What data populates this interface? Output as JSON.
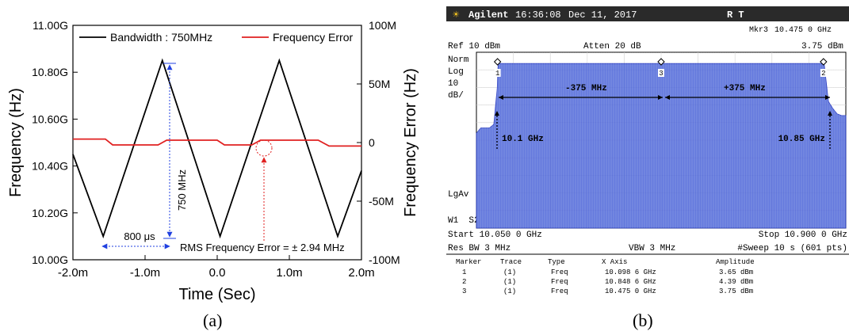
{
  "chart_data": [
    {
      "type": "line",
      "panel_label": "(a)",
      "xlabel": "Time (Sec)",
      "ylabel_left": "Frequency (Hz)",
      "ylabel_right": "Frequency Error (Hz)",
      "xlim": [
        -0.002,
        0.002
      ],
      "ylim_left": [
        10000000000,
        11000000000
      ],
      "ylim_right": [
        -100000000,
        100000000
      ],
      "x_ticks": [
        -0.002,
        -0.001,
        0,
        0.001,
        0.002
      ],
      "x_tick_labels": [
        "-2.0m",
        "-1.0m",
        "0.0",
        "1.0m",
        "2.0m"
      ],
      "y_left_ticks": [
        10000000000,
        10200000000,
        10400000000,
        10600000000,
        10800000000,
        11000000000
      ],
      "y_left_tick_labels": [
        "10.00G",
        "10.20G",
        "10.40G",
        "10.60G",
        "10.80G",
        "11.00G"
      ],
      "y_right_ticks": [
        -100000000,
        -50000000,
        0,
        50000000,
        100000000
      ],
      "y_right_tick_labels": [
        "-100M",
        "-50M",
        "0",
        "50M",
        "100M"
      ],
      "legend": {
        "placement": "top",
        "entries": [
          "Bandwidth : 750MHz",
          "Frequency Error"
        ]
      },
      "series": [
        {
          "name": "Bandwidth : 750MHz",
          "axis": "left",
          "color": "#000000",
          "x": [
            -0.002,
            -0.00158,
            -0.00076,
            4e-05,
            0.00086,
            0.00167,
            0.002
          ],
          "y": [
            10450000000,
            10100000000,
            10850000000,
            10100000000,
            10850000000,
            10100000000,
            10380000000
          ]
        },
        {
          "name": "Frequency Error",
          "axis": "right",
          "color": "#e02020",
          "x": [
            -0.002,
            -0.00155,
            -0.00145,
            -0.00082,
            -0.0007,
            0.0,
            0.0001,
            0.00048,
            0.0006,
            0.0014,
            0.00155,
            0.002
          ],
          "y": [
            3000000,
            3000000,
            -2000000,
            -2000000,
            2000000,
            2000000,
            -2000000,
            -2000000,
            2000000,
            2000000,
            -3000000,
            -3000000
          ]
        }
      ],
      "annotations": {
        "vertical_span": "750 MHz",
        "horizontal_span": "800 μs",
        "rms": "RMS Frequency Error = ± 2.94 MHz"
      }
    },
    {
      "type": "area",
      "panel_label": "(b)",
      "header": {
        "brand": "Agilent",
        "time": "16:36:08",
        "date": "Dec 11, 2017",
        "flags": "R T"
      },
      "marker_readout": {
        "label": "Mkr3",
        "freq": "10.475 0 GHz",
        "amp": "3.75 dBm"
      },
      "ref_level": "Ref 10 dBm",
      "attenuation": "Atten 20 dB",
      "left_labels": [
        "Norm",
        "Log",
        "10",
        "dB/"
      ],
      "lgav": "LgAv",
      "w1s2": "W1  S2",
      "start": "Start 10.050 0 GHz",
      "stop": "Stop 10.900 0 GHz",
      "res_bw": "Res BW 3 MHz",
      "vbw": "VBW 3 MHz",
      "sweep": "#Sweep 10 s (601 pts)",
      "x_range_ghz": [
        10.05,
        10.9
      ],
      "y_range_dbm": [
        -90,
        10
      ],
      "spectrum": {
        "color": "#4a63d8",
        "x_ghz": [
          10.05,
          10.06,
          10.07,
          10.08,
          10.09,
          10.098,
          10.1,
          10.85,
          10.86,
          10.87,
          10.88,
          10.89,
          10.9
        ],
        "y_dbm": [
          -36,
          -33,
          -33,
          -33,
          -31,
          -10,
          3.6,
          3.6,
          -18,
          -22,
          -25,
          -26,
          -26
        ]
      },
      "annotations": {
        "left_span": "-375 MHz",
        "right_span": "+375 MHz",
        "left_edge": "10.1 GHz",
        "right_edge": "10.85 GHz"
      },
      "markers_table": {
        "columns": [
          "Marker",
          "Trace",
          "Type",
          "X Axis",
          "Amplitude"
        ],
        "rows": [
          [
            "1",
            "(1)",
            "Freq",
            "10.098 6 GHz",
            "3.65 dBm"
          ],
          [
            "2",
            "(1)",
            "Freq",
            "10.848 6 GHz",
            "4.39 dBm"
          ],
          [
            "3",
            "(1)",
            "Freq",
            "10.475 0 GHz",
            "3.75 dBm"
          ]
        ]
      },
      "marker_ids": [
        "1",
        "3",
        "2"
      ],
      "marker_x_ghz": [
        10.0986,
        10.475,
        10.8486
      ]
    }
  ]
}
